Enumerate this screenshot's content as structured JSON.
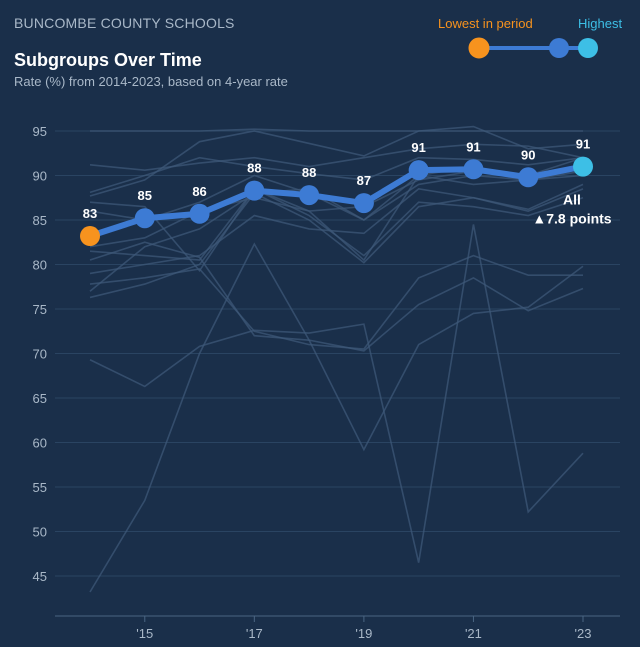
{
  "header": {
    "org": "BUNCOMBE COUNTY SCHOOLS",
    "title": "Subgroups Over Time",
    "subtitle": "Rate (%) from 2014-2023, based on 4-year rate"
  },
  "legend": {
    "lowest_label": "Lowest in period",
    "highest_label": "Highest",
    "lowest_color": "#f7931e",
    "highest_color": "#3dbfe6",
    "line_color": "#3d7bd4"
  },
  "chart_data": {
    "type": "line",
    "x": [
      2014,
      2015,
      2016,
      2017,
      2018,
      2019,
      2020,
      2021,
      2022,
      2023
    ],
    "x_tick_labels": [
      {
        "x": 2015,
        "label": "'15"
      },
      {
        "x": 2017,
        "label": "'17"
      },
      {
        "x": 2019,
        "label": "'19"
      },
      {
        "x": 2021,
        "label": "'21"
      },
      {
        "x": 2023,
        "label": "'23"
      }
    ],
    "y_ticks": [
      45,
      50,
      55,
      60,
      65,
      70,
      75,
      80,
      85,
      90,
      95
    ],
    "ylim": [
      40,
      97
    ],
    "xlim": [
      2013.4,
      2023.4
    ],
    "grid": true,
    "highlight_series": {
      "name": "All",
      "values": [
        83.2,
        85.2,
        85.7,
        88.3,
        87.8,
        86.9,
        90.6,
        90.7,
        89.8,
        91.0
      ],
      "labels": [
        "83",
        "85",
        "86",
        "88",
        "88",
        "87",
        "91",
        "91",
        "90",
        "91"
      ],
      "change_text": "▲7.8 points"
    },
    "background_series": [
      {
        "values": [
          95.0,
          95.0,
          95.0,
          95.2,
          95.0,
          95.0,
          95.0,
          95.0,
          95.0,
          95.0
        ]
      },
      {
        "values": [
          91.2,
          90.6,
          91.4,
          92.0,
          91.0,
          92.0,
          93.0,
          93.5,
          93.3,
          92.0
        ]
      },
      {
        "values": [
          87.7,
          89.5,
          93.8,
          95.0,
          93.6,
          92.2,
          95.0,
          95.5,
          93.0,
          93.5
        ]
      },
      {
        "values": [
          88.1,
          90.0,
          92.0,
          91.0,
          90.2,
          89.5,
          92.0,
          91.8,
          91.2,
          92.0
        ]
      },
      {
        "values": [
          86.0,
          85.0,
          87.0,
          90.0,
          88.0,
          85.0,
          90.0,
          91.0,
          89.5,
          90.5
        ]
      },
      {
        "values": [
          79.0,
          80.0,
          81.0,
          85.5,
          84.0,
          83.5,
          88.5,
          87.5,
          86.0,
          88.5
        ]
      },
      {
        "values": [
          76.3,
          77.8,
          80.0,
          88.0,
          85.0,
          80.2,
          86.5,
          87.5,
          86.2,
          89.0
        ]
      },
      {
        "values": [
          81.5,
          81.0,
          80.5,
          88.5,
          85.5,
          81.0,
          87.0,
          86.5,
          85.5,
          87.5
        ]
      },
      {
        "values": [
          77.0,
          82.0,
          84.0,
          88.0,
          88.5,
          85.0,
          89.0,
          90.0,
          89.5,
          90.0
        ]
      },
      {
        "values": [
          82.0,
          83.0,
          86.0,
          87.5,
          86.0,
          86.5,
          89.5,
          90.5,
          90.0,
          92.0
        ]
      },
      {
        "values": [
          87.0,
          86.5,
          79.3,
          88.5,
          86.0,
          80.5,
          90.0,
          89.0,
          89.5,
          91.0
        ]
      },
      {
        "values": [
          69.3,
          66.3,
          70.8,
          72.6,
          72.3,
          73.3,
          46.5,
          84.5,
          52.2,
          58.8
        ]
      },
      {
        "values": [
          43.2,
          53.5,
          70.0,
          82.3,
          71.5,
          59.2,
          71.0,
          74.5,
          75.2,
          79.8
        ]
      },
      {
        "values": [
          77.8,
          78.5,
          79.5,
          72.5,
          71.0,
          70.5,
          78.5,
          81.0,
          78.8,
          78.8
        ]
      },
      {
        "values": [
          80.5,
          82.5,
          80.8,
          72.0,
          71.5,
          70.3,
          75.5,
          78.5,
          74.8,
          77.3
        ]
      }
    ]
  }
}
